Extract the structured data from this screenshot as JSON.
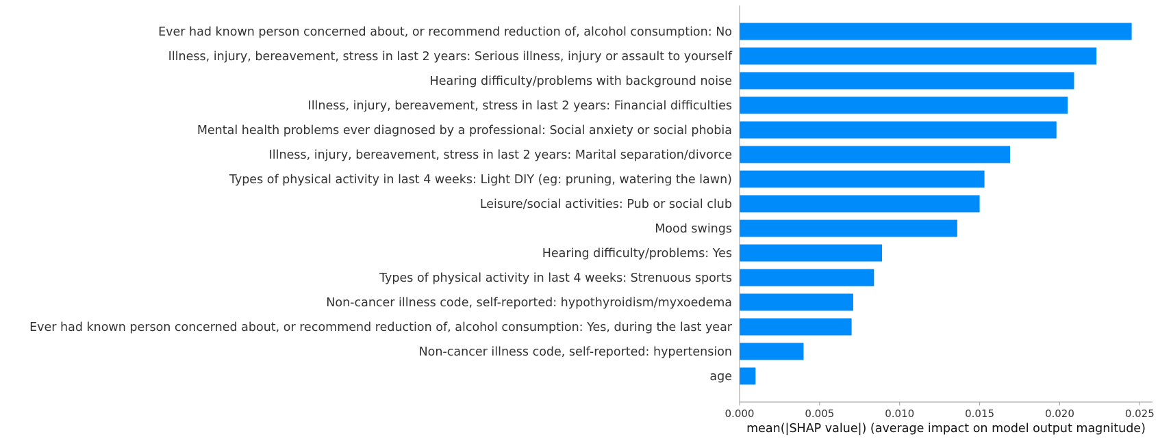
{
  "chart_data": {
    "type": "bar",
    "orientation": "horizontal",
    "title": "",
    "xlabel": "mean(|SHAP value|) (average impact on model output magnitude)",
    "ylabel": "",
    "xlim": [
      0,
      0.0258
    ],
    "xticks": [
      0.0,
      0.005,
      0.01,
      0.015,
      0.02,
      0.025
    ],
    "xtick_labels": [
      "0.000",
      "0.005",
      "0.010",
      "0.015",
      "0.020",
      "0.025"
    ],
    "bar_color": "#008bfb",
    "grid": false,
    "categories": [
      "Ever had known person concerned about, or recommend reduction of, alcohol consumption: No",
      "Illness, injury, bereavement, stress in last 2 years: Serious illness, injury or assault to yourself",
      "Hearing difficulty/problems with background noise",
      "Illness, injury, bereavement, stress in last 2 years: Financial difficulties",
      "Mental health problems ever diagnosed by a professional: Social anxiety or social phobia",
      "Illness, injury, bereavement, stress in last 2 years: Marital separation/divorce",
      "Types of physical activity in last 4 weeks: Light DIY (eg: pruning, watering the lawn)",
      "Leisure/social activities: Pub or social club",
      "Mood swings",
      "Hearing difficulty/problems: Yes",
      "Types of physical activity in last 4 weeks: Strenuous sports",
      "Non-cancer illness code, self-reported: hypothyroidism/myxoedema",
      "Ever had known person concerned about, or recommend reduction of, alcohol consumption: Yes, during the last year",
      "Non-cancer illness code, self-reported: hypertension",
      "age"
    ],
    "values": [
      0.0245,
      0.0223,
      0.0209,
      0.0205,
      0.0198,
      0.0169,
      0.0153,
      0.015,
      0.0136,
      0.0089,
      0.0084,
      0.0071,
      0.007,
      0.004,
      0.001
    ]
  }
}
